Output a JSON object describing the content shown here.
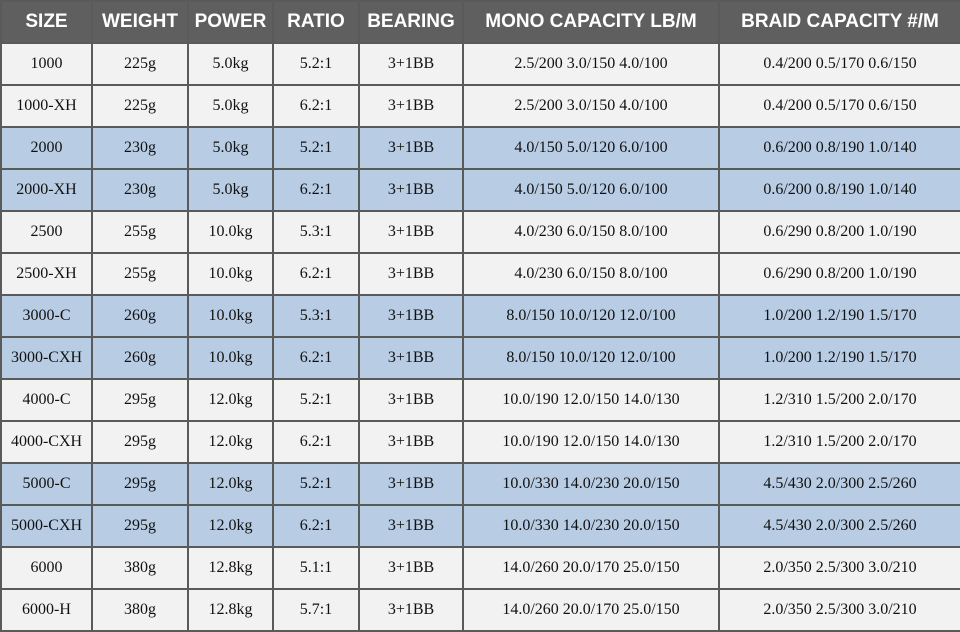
{
  "table": {
    "headers": [
      "SIZE",
      "WEIGHT",
      "POWER",
      "RATIO",
      "BEARING",
      "MONO CAPACITY LB/M",
      "BRAID CAPACITY #/M"
    ],
    "rows": [
      [
        "1000",
        "225g",
        "5.0kg",
        "5.2:1",
        "3+1BB",
        "2.5/200 3.0/150 4.0/100",
        "0.4/200 0.5/170 0.6/150"
      ],
      [
        "1000-XH",
        "225g",
        "5.0kg",
        "6.2:1",
        "3+1BB",
        "2.5/200 3.0/150 4.0/100",
        "0.4/200 0.5/170 0.6/150"
      ],
      [
        "2000",
        "230g",
        "5.0kg",
        "5.2:1",
        "3+1BB",
        "4.0/150 5.0/120 6.0/100",
        "0.6/200 0.8/190 1.0/140"
      ],
      [
        "2000-XH",
        "230g",
        "5.0kg",
        "6.2:1",
        "3+1BB",
        "4.0/150 5.0/120 6.0/100",
        "0.6/200 0.8/190 1.0/140"
      ],
      [
        "2500",
        "255g",
        "10.0kg",
        "5.3:1",
        "3+1BB",
        "4.0/230 6.0/150 8.0/100",
        "0.6/290 0.8/200 1.0/190"
      ],
      [
        "2500-XH",
        "255g",
        "10.0kg",
        "6.2:1",
        "3+1BB",
        "4.0/230 6.0/150 8.0/100",
        "0.6/290 0.8/200 1.0/190"
      ],
      [
        "3000-C",
        "260g",
        "10.0kg",
        "5.3:1",
        "3+1BB",
        "8.0/150 10.0/120 12.0/100",
        "1.0/200 1.2/190 1.5/170"
      ],
      [
        "3000-CXH",
        "260g",
        "10.0kg",
        "6.2:1",
        "3+1BB",
        "8.0/150 10.0/120 12.0/100",
        "1.0/200 1.2/190 1.5/170"
      ],
      [
        "4000-C",
        "295g",
        "12.0kg",
        "5.2:1",
        "3+1BB",
        "10.0/190 12.0/150 14.0/130",
        "1.2/310 1.5/200 2.0/170"
      ],
      [
        "4000-CXH",
        "295g",
        "12.0kg",
        "6.2:1",
        "3+1BB",
        "10.0/190 12.0/150 14.0/130",
        "1.2/310 1.5/200 2.0/170"
      ],
      [
        "5000-C",
        "295g",
        "12.0kg",
        "5.2:1",
        "3+1BB",
        "10.0/330 14.0/230 20.0/150",
        "4.5/430 2.0/300 2.5/260"
      ],
      [
        "5000-CXH",
        "295g",
        "12.0kg",
        "6.2:1",
        "3+1BB",
        "10.0/330 14.0/230 20.0/150",
        "4.5/430 2.0/300 2.5/260"
      ],
      [
        "6000",
        "380g",
        "12.8kg",
        "5.1:1",
        "3+1BB",
        "14.0/260 20.0/170 25.0/150",
        "2.0/350 2.5/300 3.0/210"
      ],
      [
        "6000-H",
        "380g",
        "12.8kg",
        "5.7:1",
        "3+1BB",
        "14.0/260 20.0/170 25.0/150",
        "2.0/350 2.5/300 3.0/210"
      ]
    ],
    "row_shading": [
      "light",
      "light",
      "blue",
      "blue",
      "light",
      "light",
      "blue",
      "blue",
      "light",
      "light",
      "blue",
      "blue",
      "light",
      "light"
    ]
  },
  "colors": {
    "header_bg": "#5f5f5f",
    "header_text": "#ffffff",
    "grid_line": "#5a5a5a",
    "light_row": "#f2f2f2",
    "blue_row": "#b8cce4"
  }
}
